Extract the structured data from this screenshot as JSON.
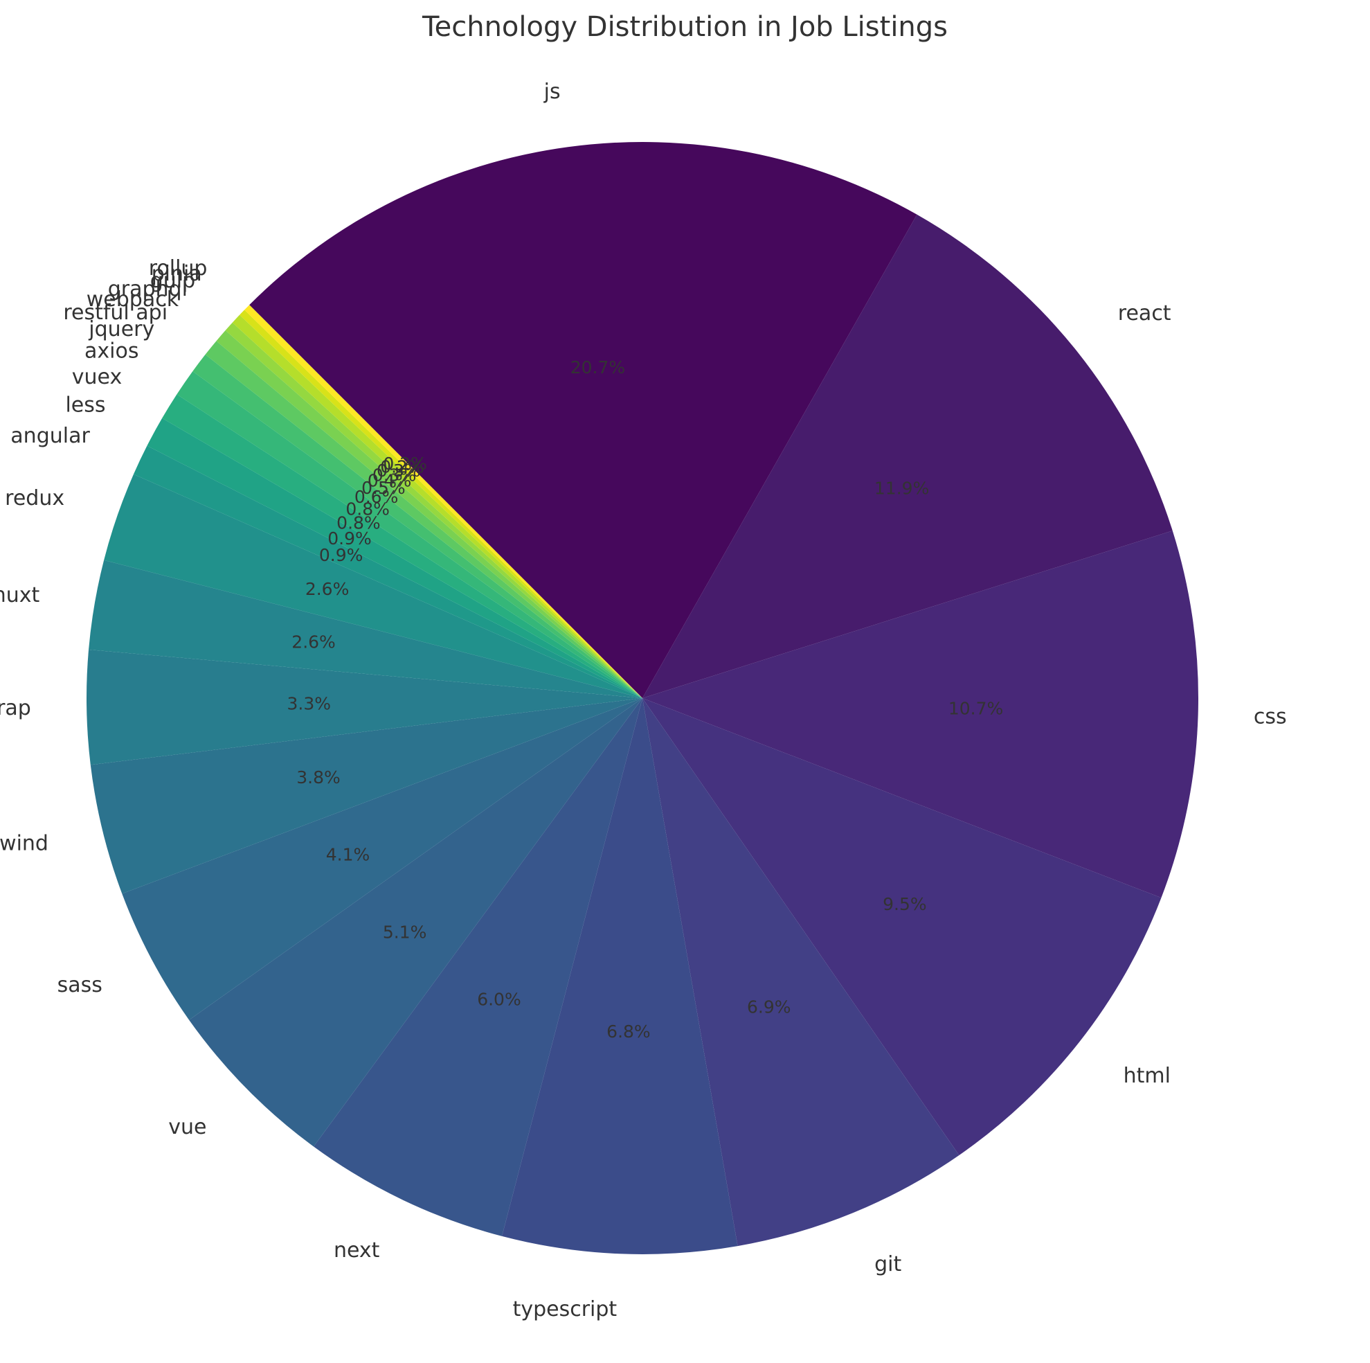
{
  "chart_data": {
    "type": "pie",
    "title": "Technology Distribution in Job Listings",
    "start_angle_deg": 135,
    "direction": "clockwise",
    "colormap": "viridis",
    "legend": "none",
    "slices": [
      {
        "label": "js",
        "value": 20.7,
        "pct_text": "20.7%",
        "color": "#46085c"
      },
      {
        "label": "react",
        "value": 11.9,
        "pct_text": "11.9%",
        "color": "#471c6c"
      },
      {
        "label": "css",
        "value": 10.7,
        "pct_text": "10.7%",
        "color": "#482878"
      },
      {
        "label": "html",
        "value": 9.5,
        "pct_text": "9.5%",
        "color": "#45327f"
      },
      {
        "label": "git",
        "value": 6.9,
        "pct_text": "6.9%",
        "color": "#424086"
      },
      {
        "label": "typescript",
        "value": 6.8,
        "pct_text": "6.8%",
        "color": "#3b4c8a"
      },
      {
        "label": "next",
        "value": 6.0,
        "pct_text": "6.0%",
        "color": "#38568c"
      },
      {
        "label": "vue",
        "value": 5.1,
        "pct_text": "5.1%",
        "color": "#33638d"
      },
      {
        "label": "sass",
        "value": 4.1,
        "pct_text": "4.1%",
        "color": "#306a8e"
      },
      {
        "label": "tailwind",
        "value": 3.8,
        "pct_text": "3.8%",
        "color": "#2c738e"
      },
      {
        "label": "bootstrap",
        "value": 3.3,
        "pct_text": "3.3%",
        "color": "#287d8e"
      },
      {
        "label": "nuxt",
        "value": 2.6,
        "pct_text": "2.6%",
        "color": "#25858e"
      },
      {
        "label": "redux",
        "value": 2.6,
        "pct_text": "2.6%",
        "color": "#21918c"
      },
      {
        "label": "angular",
        "value": 0.9,
        "pct_text": "0.9%",
        "color": "#1f998a"
      },
      {
        "label": "less",
        "value": 0.9,
        "pct_text": "0.9%",
        "color": "#20a386"
      },
      {
        "label": "vuex",
        "value": 0.8,
        "pct_text": "0.8%",
        "color": "#28ae80"
      },
      {
        "label": "axios",
        "value": 0.8,
        "pct_text": "0.8%",
        "color": "#35b779"
      },
      {
        "label": "jquery",
        "value": 0.6,
        "pct_text": "0.6%",
        "color": "#44bf70"
      },
      {
        "label": "restful api",
        "value": 0.5,
        "pct_text": "0.5%",
        "color": "#5ec962"
      },
      {
        "label": "webpack",
        "value": 0.4,
        "pct_text": "0.4%",
        "color": "#7ad151"
      },
      {
        "label": "graphql",
        "value": 0.3,
        "pct_text": "0.3%",
        "color": "#95d840"
      },
      {
        "label": "gulp",
        "value": 0.3,
        "pct_text": "0.3%",
        "color": "#b5de2b"
      },
      {
        "label": "pinia",
        "value": 0.2,
        "pct_text": "0.2%",
        "color": "#d8e219"
      },
      {
        "label": "rollup",
        "value": 0.2,
        "pct_text": "0.2%",
        "color": "#fde725"
      }
    ]
  }
}
